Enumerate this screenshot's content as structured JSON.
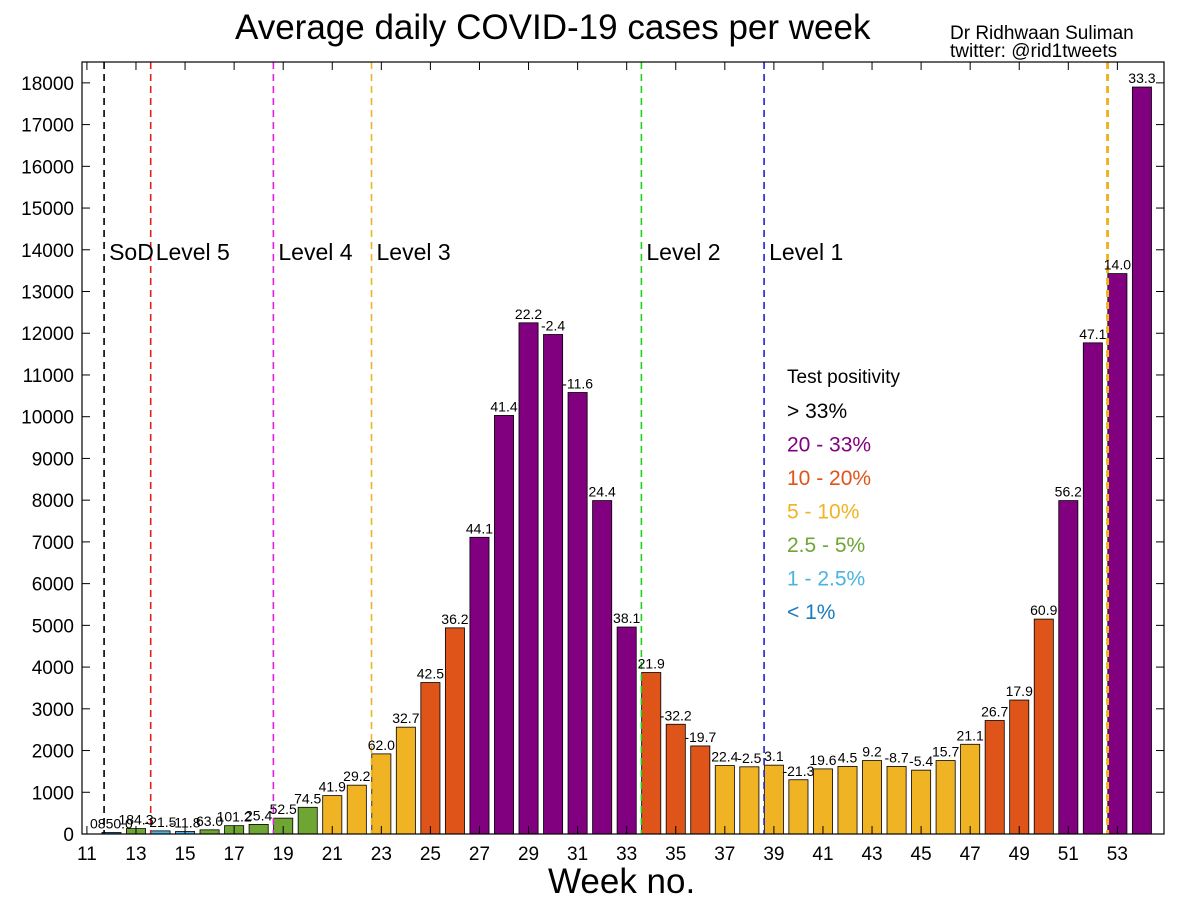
{
  "chart_data": {
    "type": "bar",
    "title": "Average daily COVID-19 cases per week",
    "author": "Dr Ridhwaan Suliman",
    "twitter": "twitter: @rid1tweets",
    "xlabel": "Week no.",
    "ylabel": "",
    "ylim": [
      0,
      18500
    ],
    "xlim": [
      10.8,
      54.9
    ],
    "yticks": [
      0,
      1000,
      2000,
      3000,
      4000,
      5000,
      6000,
      7000,
      8000,
      9000,
      10000,
      11000,
      12000,
      13000,
      14000,
      15000,
      16000,
      17000,
      18000
    ],
    "xticks": [
      11,
      13,
      15,
      17,
      19,
      21,
      23,
      25,
      27,
      29,
      31,
      33,
      35,
      37,
      39,
      41,
      43,
      45,
      47,
      49,
      51,
      53
    ],
    "weeks": [
      12,
      13,
      14,
      15,
      16,
      17,
      18,
      19,
      20,
      21,
      22,
      23,
      24,
      25,
      26,
      27,
      28,
      29,
      30,
      31,
      32,
      33,
      34,
      35,
      36,
      37,
      38,
      39,
      40,
      41,
      42,
      43,
      44,
      45,
      46,
      47,
      48,
      49,
      50,
      51,
      52,
      53,
      54
    ],
    "values": [
      35,
      130,
      75,
      60,
      100,
      200,
      230,
      380,
      640,
      920,
      1170,
      1920,
      2560,
      3630,
      4940,
      7110,
      10030,
      12250,
      11970,
      10580,
      7990,
      4960,
      3870,
      2630,
      2110,
      1640,
      1610,
      1650,
      1300,
      1560,
      1620,
      1760,
      1620,
      1530,
      1760,
      2150,
      2720,
      3210,
      5150,
      7990,
      11770,
      13430,
      17900
    ],
    "labels": [
      "0850.0",
      "184.3",
      "-21.5",
      "-11.8",
      "63.0",
      "101.2",
      "25.4",
      "52.5",
      "74.5",
      "41.9",
      "29.2",
      "62.0",
      "32.7",
      "42.5",
      "36.2",
      "44.1",
      "41.4",
      "22.2",
      "-2.4",
      "-11.6",
      "24.4",
      "38.1",
      "21.9",
      "-32.2",
      "-19.7",
      "22.4",
      "-2.5",
      "3.1",
      "-21.3",
      "19.6",
      "4.5",
      "9.2",
      "-8.7",
      "-5.4",
      "15.7",
      "21.1",
      "26.7",
      "17.9",
      "60.9",
      "56.2",
      "47.1",
      "14.0",
      "33.3"
    ],
    "bar_colors": [
      "#1a7bbd",
      "#6ea533",
      "#4ab3e2",
      "#4ab3e2",
      "#6ea533",
      "#6ea533",
      "#6ea533",
      "#6ea533",
      "#6ea533",
      "#f0b323",
      "#f0b323",
      "#f0b323",
      "#f0b323",
      "#df5419",
      "#df5419",
      "#800080",
      "#800080",
      "#800080",
      "#800080",
      "#800080",
      "#800080",
      "#800080",
      "#df5419",
      "#df5419",
      "#df5419",
      "#f0b323",
      "#f0b323",
      "#f0b323",
      "#f0b323",
      "#f0b323",
      "#f0b323",
      "#f0b323",
      "#f0b323",
      "#f0b323",
      "#f0b323",
      "#f0b323",
      "#df5419",
      "#df5419",
      "#df5419",
      "#800080",
      "#800080",
      "#800080",
      "#800080"
    ],
    "level_lines": [
      {
        "week": 11.7,
        "color": "#000000",
        "label": "SoD"
      },
      {
        "week": 13.6,
        "color": "#e0201d",
        "label": "Level 5"
      },
      {
        "week": 18.6,
        "color": "#e020e0",
        "label": "Level 4"
      },
      {
        "week": 22.6,
        "color": "#f0b323",
        "label": "Level 3"
      },
      {
        "week": 33.6,
        "color": "#20d020",
        "label": "Level 2"
      },
      {
        "week": 38.6,
        "color": "#2020d0",
        "label": "Level 1"
      },
      {
        "week": 52.6,
        "color": "#f0b323",
        "label": ""
      }
    ],
    "legend": {
      "title": "Test positivity",
      "placement": "right-middle",
      "items": [
        {
          "label": "> 33%",
          "color": "#000000"
        },
        {
          "label": "20 - 33%",
          "color": "#800080"
        },
        {
          "label": "10 - 20%",
          "color": "#df5419"
        },
        {
          "label": "5 - 10%",
          "color": "#f0b323"
        },
        {
          "label": "2.5 - 5%",
          "color": "#6ea533"
        },
        {
          "label": "1 - 2.5%",
          "color": "#4ab3e2"
        },
        {
          "label": "< 1%",
          "color": "#1a7bbd"
        }
      ]
    },
    "grid": false
  }
}
